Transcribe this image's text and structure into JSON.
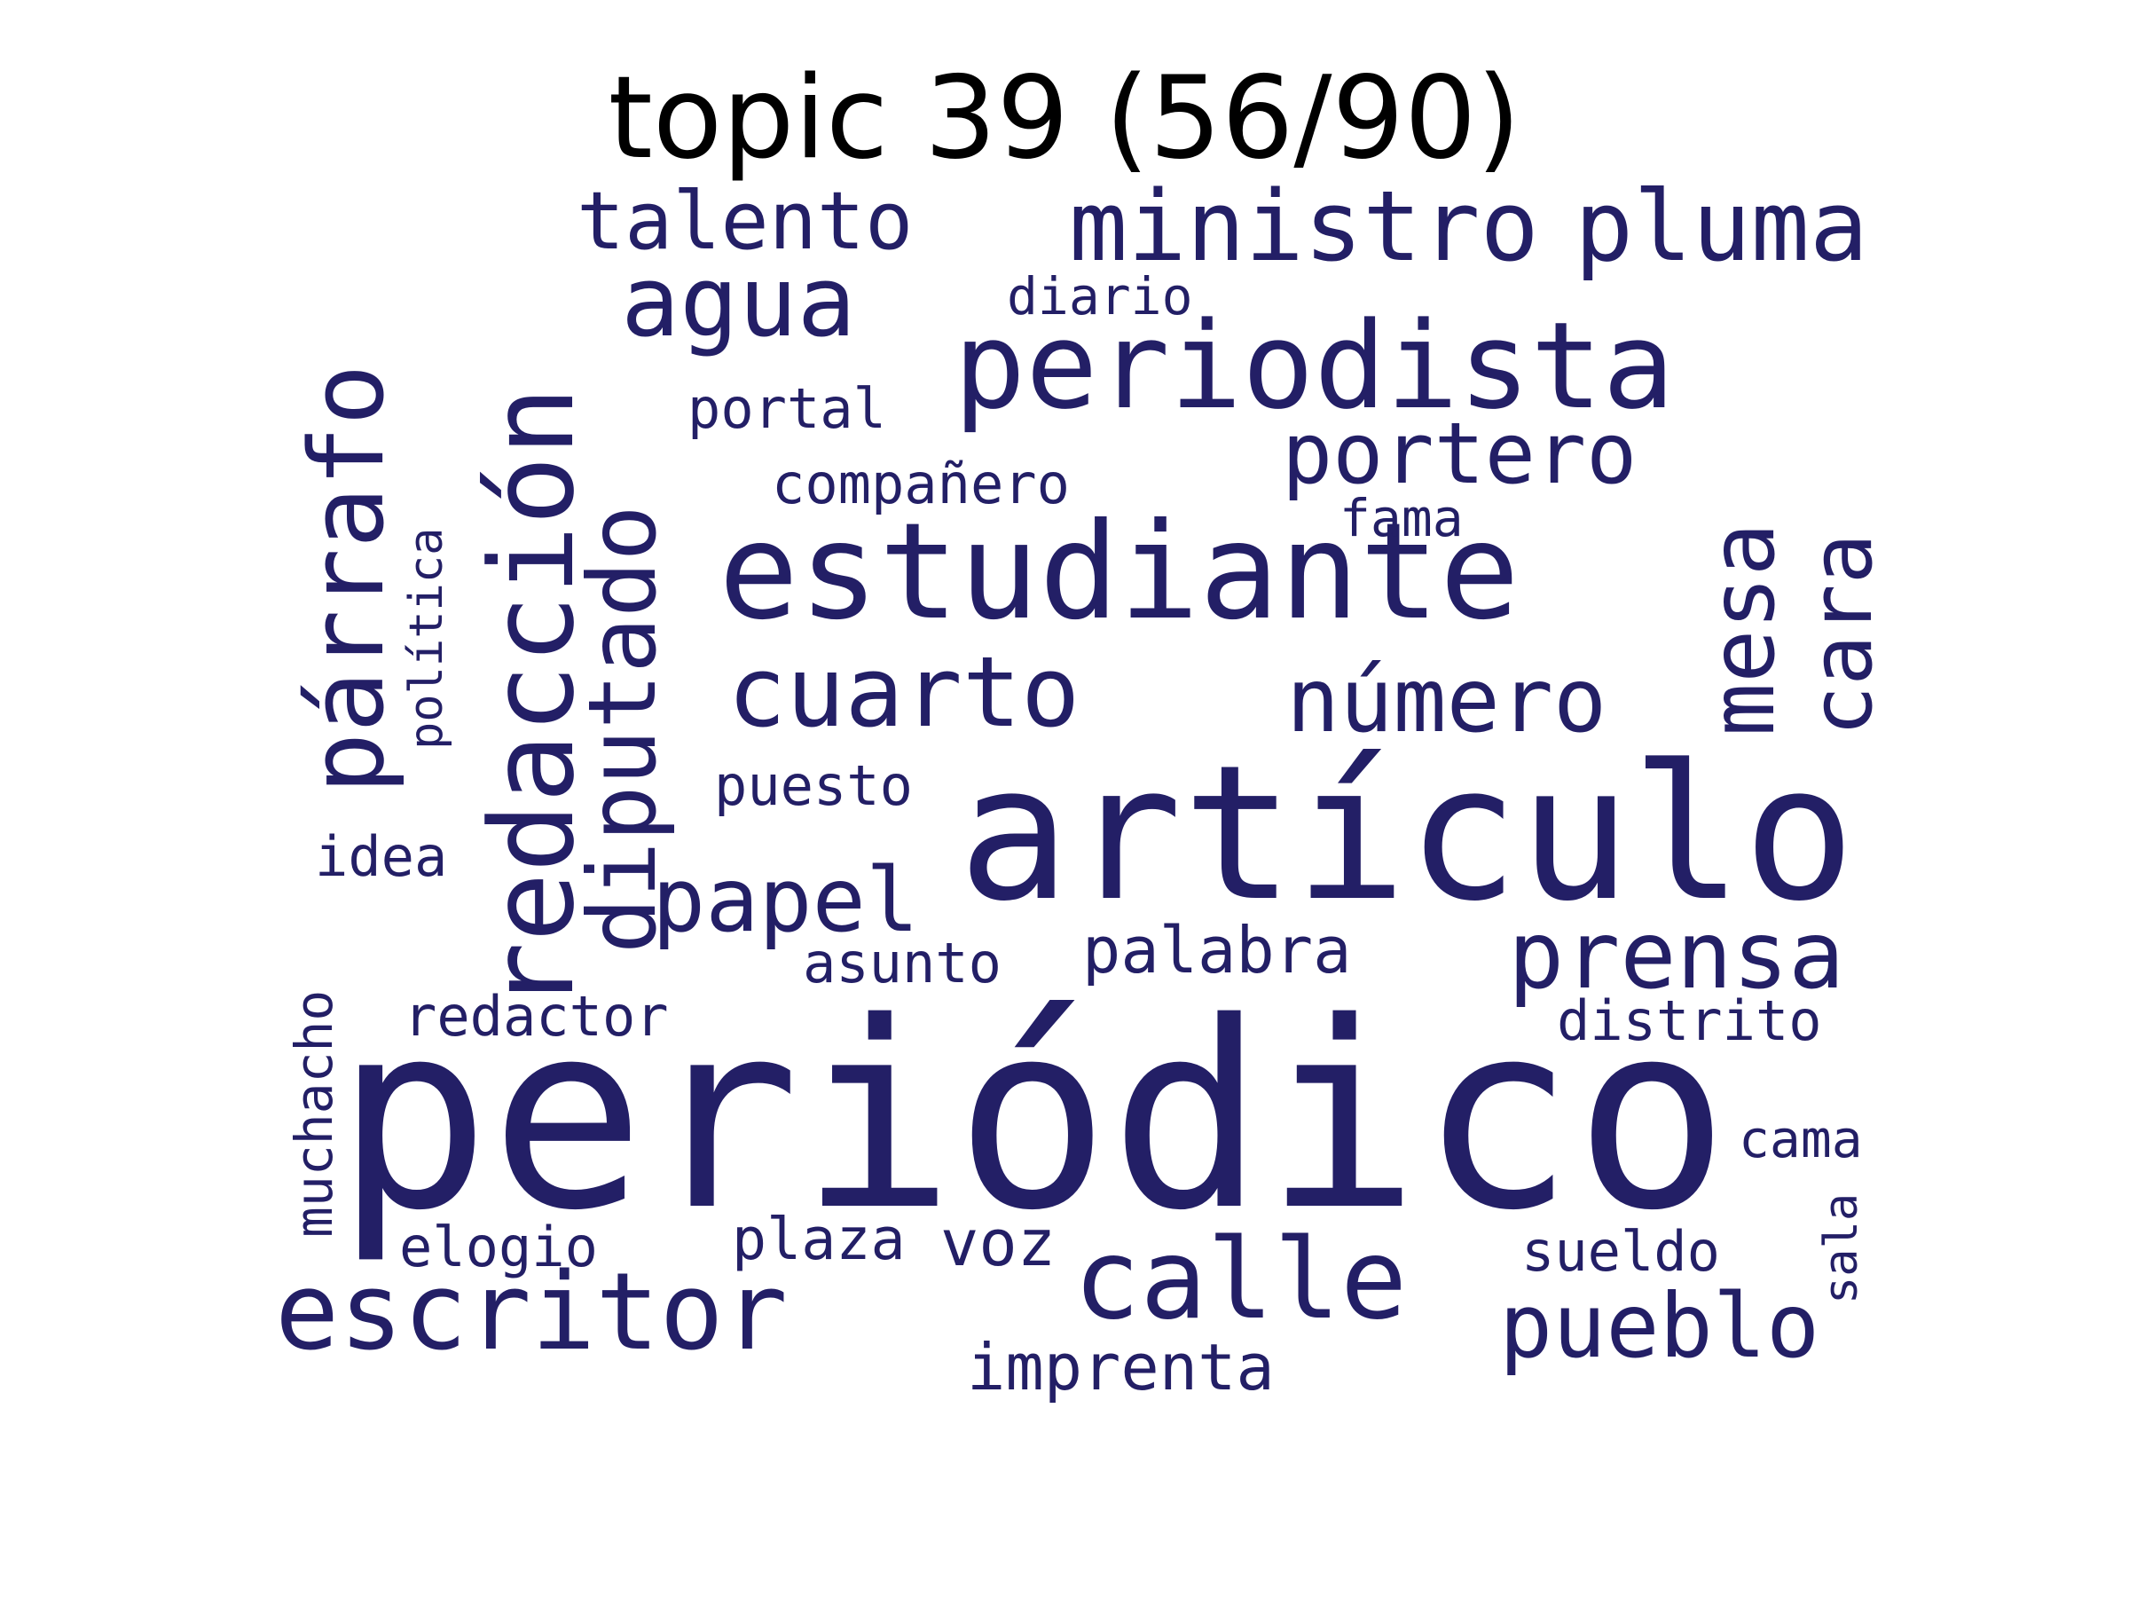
{
  "title": "topic 39 (56/90)",
  "word_color": "#231f66",
  "words": [
    {
      "text": "periódico"
    },
    {
      "text": "artículo"
    },
    {
      "text": "estudiante"
    },
    {
      "text": "periodista"
    },
    {
      "text": "redacción"
    },
    {
      "text": "párrafo"
    },
    {
      "text": "escritor"
    },
    {
      "text": "calle"
    },
    {
      "text": "cuarto"
    },
    {
      "text": "ministro"
    },
    {
      "text": "pluma"
    },
    {
      "text": "agua"
    },
    {
      "text": "diputado"
    },
    {
      "text": "prensa"
    },
    {
      "text": "pueblo"
    },
    {
      "text": "papel"
    },
    {
      "text": "número"
    },
    {
      "text": "talento"
    },
    {
      "text": "mesa"
    },
    {
      "text": "cara"
    },
    {
      "text": "portero"
    },
    {
      "text": "palabra"
    },
    {
      "text": "imprenta"
    },
    {
      "text": "compañero"
    },
    {
      "text": "redactor"
    },
    {
      "text": "distrito"
    },
    {
      "text": "portal"
    },
    {
      "text": "puesto"
    },
    {
      "text": "voz"
    },
    {
      "text": "plaza"
    },
    {
      "text": "elogio"
    },
    {
      "text": "sueldo"
    },
    {
      "text": "asunto"
    },
    {
      "text": "diario"
    },
    {
      "text": "idea"
    },
    {
      "text": "muchacho"
    },
    {
      "text": "política"
    },
    {
      "text": "cama"
    },
    {
      "text": "fama"
    },
    {
      "text": "sala"
    }
  ]
}
